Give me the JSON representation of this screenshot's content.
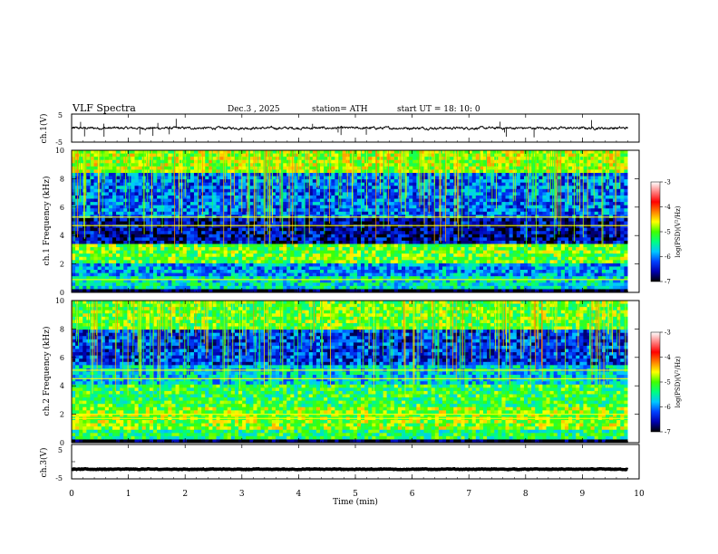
{
  "header": {
    "title": "VLF  Spectra",
    "date": "Dec.3  , 2025",
    "station": "station= ATH",
    "start": "start  UT  =   18: 10: 0"
  },
  "chart_data": {
    "type": "heatmap",
    "time_axis": {
      "label": "Time  (min)",
      "range": [
        0,
        10
      ],
      "ticks": [
        "0",
        "1",
        "2",
        "3",
        "4",
        "5",
        "6",
        "7",
        "8",
        "9",
        "10"
      ]
    },
    "panels": [
      {
        "id": "ch1v",
        "kind": "line",
        "ylabel": "ch.1(V)",
        "ylim": [
          -5,
          5
        ],
        "yticks": [
          "5",
          "-5"
        ],
        "trace_mean_v": 0,
        "trace_jitter_v": 0.6,
        "spike_count": 18
      },
      {
        "id": "ch1f",
        "kind": "spectrogram",
        "ylabel": "ch.1  Frequency  (kHz)",
        "ylim": [
          0,
          10
        ],
        "yticks": [
          "0",
          "2",
          "4",
          "6",
          "8",
          "10"
        ],
        "data_until_min": 9.8,
        "bands_khz": [
          {
            "from": 0.0,
            "to": 0.2,
            "psd": -7.0
          },
          {
            "from": 0.2,
            "to": 1.2,
            "psd": -5.6
          },
          {
            "from": 1.2,
            "to": 2.0,
            "psd": -5.9
          },
          {
            "from": 2.0,
            "to": 3.5,
            "psd": -5.0
          },
          {
            "from": 3.5,
            "to": 5.2,
            "psd": -6.6
          },
          {
            "from": 5.2,
            "to": 8.5,
            "psd": -6.1
          },
          {
            "from": 8.5,
            "to": 10.0,
            "psd": -4.8
          }
        ],
        "lines_khz": [
          0.9,
          4.7,
          5.3
        ],
        "spheric_count": 160
      },
      {
        "id": "ch2f",
        "kind": "spectrogram",
        "ylabel": "ch.2  Frequency  (kHz)",
        "ylim": [
          0,
          10
        ],
        "yticks": [
          "0",
          "2",
          "4",
          "6",
          "8",
          "10"
        ],
        "data_until_min": 9.8,
        "bands_khz": [
          {
            "from": 0.0,
            "to": 0.2,
            "psd": -7.0
          },
          {
            "from": 0.2,
            "to": 1.0,
            "psd": -5.3
          },
          {
            "from": 1.0,
            "to": 2.5,
            "psd": -4.9
          },
          {
            "from": 2.5,
            "to": 4.0,
            "psd": -5.2
          },
          {
            "from": 4.0,
            "to": 5.5,
            "psd": -5.7
          },
          {
            "from": 5.5,
            "to": 8.0,
            "psd": -6.3
          },
          {
            "from": 8.0,
            "to": 10.0,
            "psd": -5.0
          }
        ],
        "lines_khz": [
          1.7,
          2.0,
          4.5,
          5.1
        ],
        "spheric_count": 160
      },
      {
        "id": "ch3v",
        "kind": "line",
        "ylabel": "ch.3(V)",
        "ylim": [
          -5,
          5
        ],
        "yticks": [
          "5",
          "-5"
        ],
        "trace_mean_v": -2.2,
        "trace_jitter_v": 0.15,
        "spike_count": 0
      }
    ],
    "colorbar": {
      "label": "log(PSD)(V²/Hz)",
      "range": [
        -7,
        -3
      ],
      "ticks": [
        "-3",
        "-4",
        "-5",
        "-6",
        "-7"
      ],
      "stops": [
        "#000000",
        "#0000b0",
        "#0040ff",
        "#00c8ff",
        "#00ff80",
        "#40ff00",
        "#ffff00",
        "#ff8000",
        "#ff0000",
        "#ff8080",
        "#ffffff"
      ]
    }
  }
}
